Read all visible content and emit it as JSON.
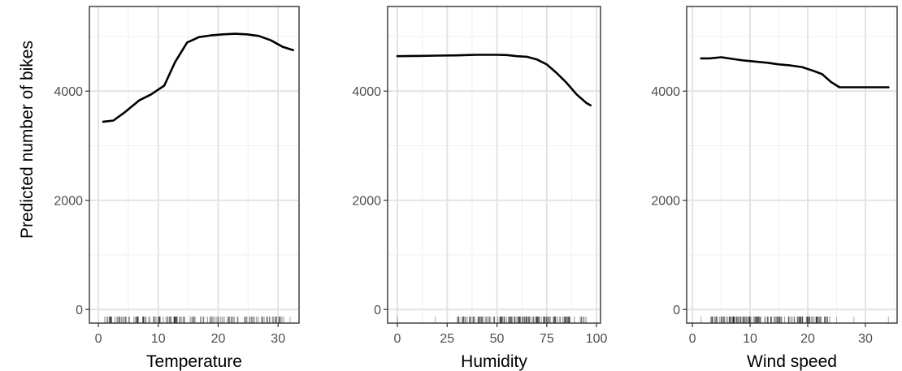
{
  "figure": {
    "ylabel": "Predicted number of bikes"
  },
  "chart_data": [
    {
      "type": "line",
      "xlabel": "Temperature",
      "ylabel": "Predicted number of bikes",
      "xlim": [
        -1.5,
        33.5
      ],
      "ylim": [
        -250,
        5550
      ],
      "xticks": [
        0,
        10,
        20,
        30
      ],
      "yticks": [
        0,
        2000,
        4000
      ],
      "grid": true,
      "series": [
        {
          "x": [
            0.8,
            2.5,
            4.5,
            6.8,
            8.8,
            11,
            12.8,
            14.8,
            16.8,
            18.8,
            20.8,
            22.8,
            24.8,
            26.8,
            28.8,
            30.8,
            32.5
          ],
          "y": [
            3440,
            3460,
            3620,
            3830,
            3940,
            4100,
            4530,
            4890,
            4990,
            5020,
            5040,
            5050,
            5040,
            5010,
            4930,
            4810,
            4750
          ]
        }
      ],
      "rug": {
        "min": 0.8,
        "max": 32.5,
        "count": 140,
        "dense_range": [
          1,
          31
        ],
        "outliers": [
          2,
          29.5,
          32
        ]
      }
    },
    {
      "type": "line",
      "xlabel": "Humidity",
      "ylabel": "",
      "xlim": [
        -4.9,
        102
      ],
      "ylim": [
        -250,
        5550
      ],
      "xticks": [
        0,
        25,
        50,
        75,
        100
      ],
      "yticks": [
        0,
        2000,
        4000
      ],
      "grid": true,
      "series": [
        {
          "x": [
            0,
            10,
            20,
            30,
            35,
            40,
            45,
            50,
            55,
            60,
            65,
            70,
            75,
            80,
            85,
            90,
            95,
            97
          ],
          "y": [
            4640,
            4645,
            4650,
            4655,
            4660,
            4665,
            4665,
            4665,
            4660,
            4640,
            4630,
            4580,
            4490,
            4330,
            4150,
            3940,
            3780,
            3740
          ]
        }
      ],
      "rug": {
        "min": 0,
        "max": 97,
        "count": 140,
        "dense_range": [
          30,
          97
        ],
        "outliers": [
          0,
          19,
          32,
          37
        ]
      }
    },
    {
      "type": "line",
      "xlabel": "Wind speed",
      "ylabel": "",
      "xlim": [
        -1,
        35.5
      ],
      "ylim": [
        -250,
        5550
      ],
      "xticks": [
        0,
        10,
        20,
        30
      ],
      "yticks": [
        0,
        2000,
        4000
      ],
      "grid": true,
      "series": [
        {
          "x": [
            1.5,
            3,
            5,
            7,
            9,
            11,
            13,
            15,
            17,
            19,
            21,
            22.5,
            24,
            25.5,
            27,
            29,
            31,
            34
          ],
          "y": [
            4600,
            4600,
            4620,
            4590,
            4560,
            4540,
            4520,
            4490,
            4470,
            4440,
            4370,
            4310,
            4170,
            4070,
            4070,
            4070,
            4070,
            4070
          ]
        }
      ],
      "rug": {
        "min": 1.5,
        "max": 34,
        "count": 140,
        "dense_range": [
          3,
          24
        ],
        "outliers": [
          1.5,
          25,
          28,
          34
        ]
      }
    }
  ]
}
